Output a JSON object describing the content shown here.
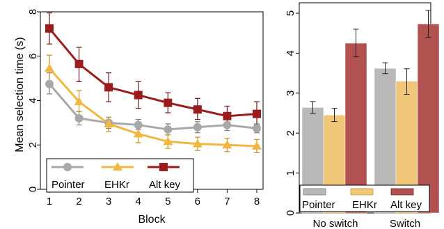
{
  "colors": {
    "pointer": "#a8a8a8",
    "ehkr": "#f2b740",
    "altkey": "#9b1c1c",
    "pointer_bar": "#b9b9b9",
    "ehkr_bar": "#f0c679",
    "altkey_bar": "#b25250"
  },
  "chart_data": [
    {
      "type": "line",
      "title": "",
      "xlabel": "Block",
      "ylabel": "Mean selection time (s)",
      "x": [
        1,
        2,
        3,
        4,
        5,
        6,
        7,
        8
      ],
      "x_tick_labels": [
        "1",
        "2",
        "3",
        "4",
        "5",
        "6",
        "7",
        "8"
      ],
      "ylim": [
        0,
        8
      ],
      "y_ticks": [
        0,
        2,
        4,
        6,
        8
      ],
      "y_tick_labels": [
        "0",
        "2",
        "4",
        "6",
        "8"
      ],
      "grid": false,
      "legend": "bottom",
      "series": [
        {
          "name": "Pointer",
          "marker": "circle",
          "color_key": "pointer",
          "values": [
            4.75,
            3.2,
            3.0,
            2.9,
            2.7,
            2.8,
            2.9,
            2.75
          ],
          "err_low": [
            4.3,
            2.9,
            2.75,
            2.7,
            2.45,
            2.55,
            2.65,
            2.55
          ],
          "err_high": [
            5.25,
            3.5,
            3.25,
            3.15,
            2.95,
            3.05,
            3.15,
            2.95
          ]
        },
        {
          "name": "EHKr",
          "marker": "triangle",
          "color_key": "ehkr",
          "values": [
            5.45,
            3.95,
            2.95,
            2.5,
            2.15,
            2.05,
            2.0,
            1.95
          ],
          "err_low": [
            4.85,
            3.5,
            2.6,
            2.1,
            1.85,
            1.75,
            1.7,
            1.65
          ],
          "err_high": [
            6.05,
            4.45,
            3.25,
            2.9,
            2.45,
            2.35,
            2.3,
            2.25
          ]
        },
        {
          "name": "Alt key",
          "marker": "square",
          "color_key": "altkey",
          "values": [
            7.25,
            5.65,
            4.6,
            4.25,
            3.9,
            3.6,
            3.3,
            3.4
          ],
          "err_low": [
            6.55,
            4.85,
            3.95,
            3.65,
            3.45,
            3.15,
            2.85,
            2.9
          ],
          "err_high": [
            7.95,
            6.4,
            5.25,
            4.85,
            4.35,
            4.1,
            3.75,
            3.95
          ]
        }
      ]
    },
    {
      "type": "bar",
      "title": "",
      "xlabel": "",
      "ylabel": "",
      "categories": [
        "No switch",
        "Switch"
      ],
      "ylim": [
        0,
        5
      ],
      "y_ticks": [
        0,
        1,
        2,
        3,
        4,
        5
      ],
      "y_tick_labels": [
        "0",
        "1",
        "2",
        "3",
        "4",
        "5"
      ],
      "grid": false,
      "legend": "bottom",
      "series": [
        {
          "name": "Pointer",
          "color_key": "pointer_bar",
          "values": [
            2.64,
            3.62
          ],
          "err_low": [
            2.49,
            3.49
          ],
          "err_high": [
            2.79,
            3.76
          ]
        },
        {
          "name": "EHKr",
          "color_key": "ehkr_bar",
          "values": [
            2.45,
            3.3
          ],
          "err_low": [
            2.29,
            2.97
          ],
          "err_high": [
            2.62,
            3.61
          ]
        },
        {
          "name": "Alt key",
          "color_key": "altkey_bar",
          "values": [
            4.25,
            4.73
          ],
          "err_low": [
            3.91,
            4.4
          ],
          "err_high": [
            4.6,
            5.07
          ]
        }
      ]
    }
  ]
}
